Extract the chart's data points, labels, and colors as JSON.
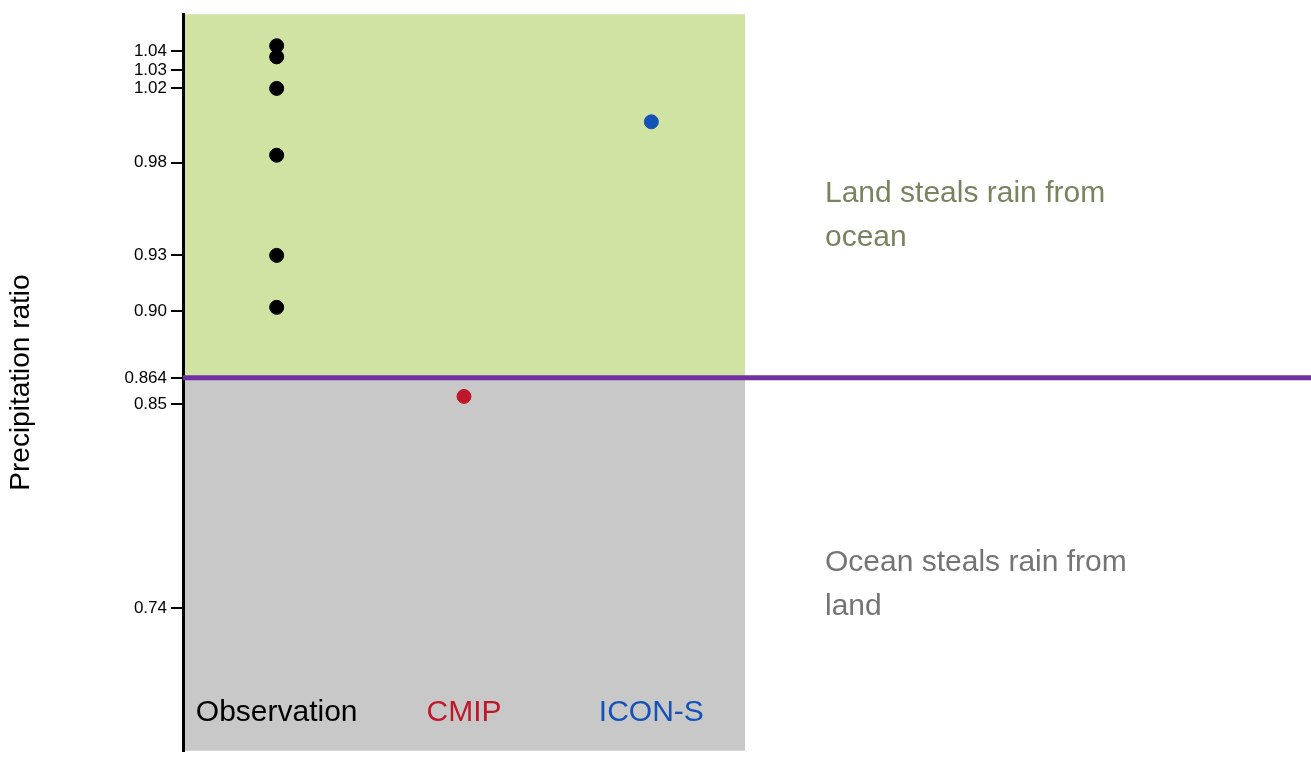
{
  "chart_data": {
    "type": "scatter",
    "ylabel": "Precipitation ratio",
    "categories": [
      "Observation",
      "CMIP",
      "ICON-S"
    ],
    "ylim": [
      0.663,
      1.06
    ],
    "yticks": [
      0.74,
      0.85,
      0.864,
      {
        "value": 0.9,
        "label": "0.90"
      },
      0.93,
      0.98,
      1.02,
      1.03,
      1.04
    ],
    "grid": false,
    "legend": false,
    "marker": "circle",
    "series": [
      {
        "color": "#000000",
        "x": [
          "Observation",
          "Observation",
          "Observation",
          "Observation",
          "Observation",
          "Observation"
        ],
        "values": [
          1.037,
          1.043,
          0.984,
          1.02,
          0.93,
          0.902
        ]
      },
      {
        "color": "#c0182b",
        "x": [
          "CMIP"
        ],
        "values": [
          0.854
        ]
      },
      {
        "color": "#1552b8",
        "x": [
          "ICON-S"
        ],
        "values": [
          1.002
        ]
      }
    ],
    "bands": [
      {
        "axis": "y",
        "from": 0.864,
        "to": 1.06,
        "label": "Land steals rain from ocean",
        "color": "#d0e3a3"
      },
      {
        "axis": "y",
        "from": 0.663,
        "to": 0.864,
        "label": "Ocean steals rain from land",
        "color": "#c8c8c8"
      }
    ],
    "ref_lines": [
      {
        "axis": "y",
        "value": 0.864,
        "color": "#7030a0"
      }
    ]
  }
}
